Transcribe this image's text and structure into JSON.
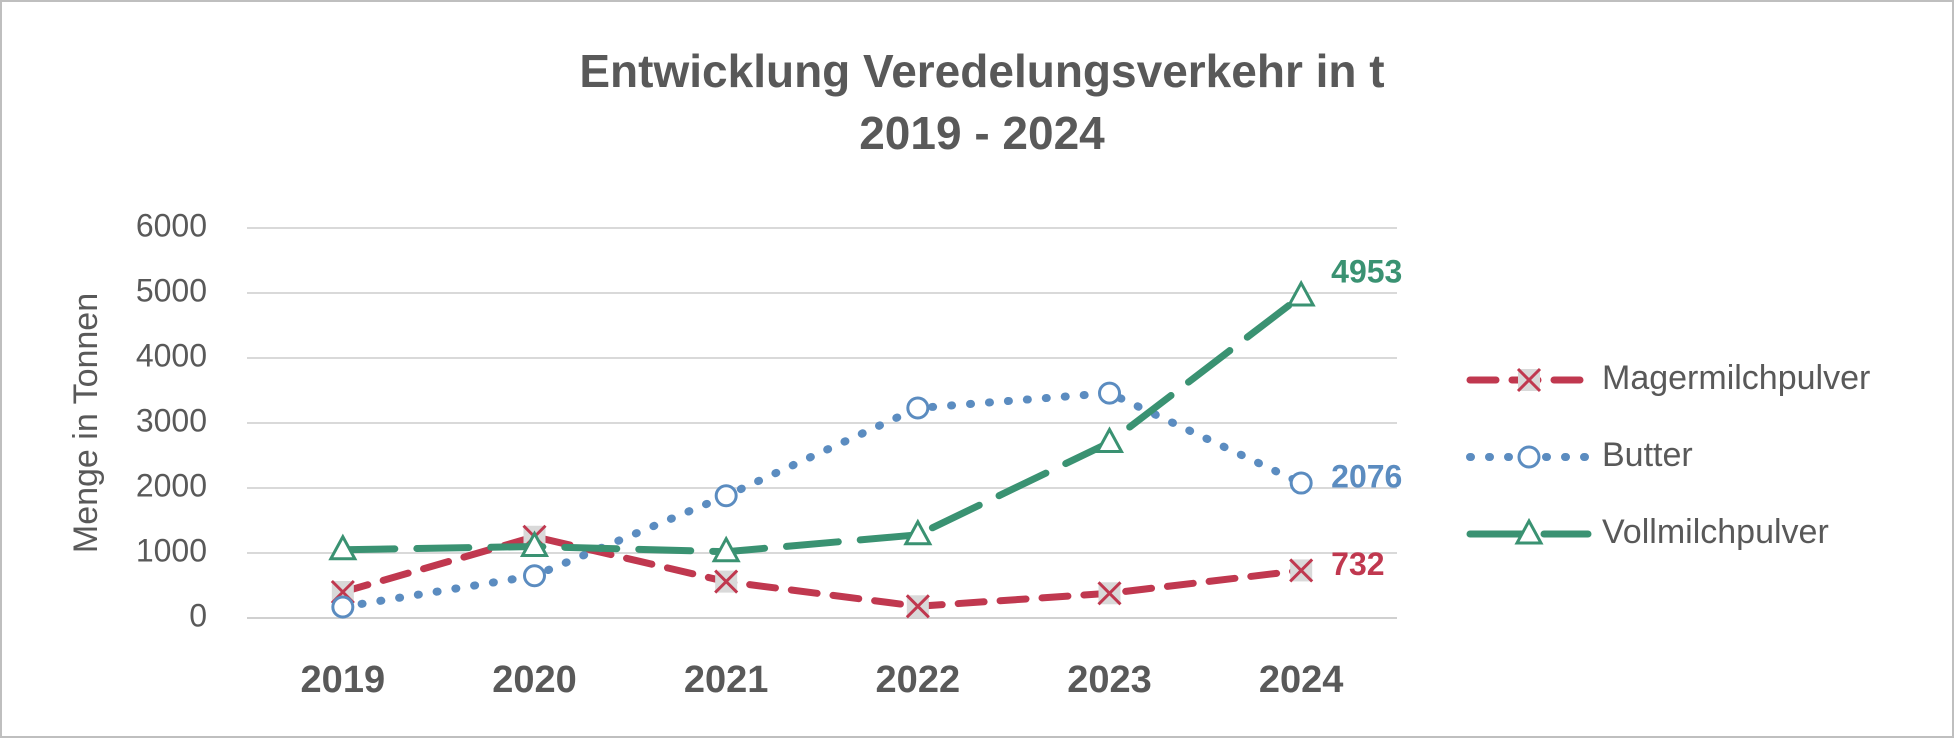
{
  "chart_data": {
    "type": "line",
    "title": [
      "Entwicklung Veredelungsverkehr in t",
      "2019 - 2024"
    ],
    "xlabel": "",
    "ylabel": "Menge in Tonnen",
    "ylim": [
      0,
      6000
    ],
    "yticks": [
      0,
      1000,
      2000,
      3000,
      4000,
      5000,
      6000
    ],
    "categories": [
      "2019",
      "2020",
      "2021",
      "2022",
      "2023",
      "2024"
    ],
    "grid": "horizontal",
    "legend": "right",
    "series": [
      {
        "name": "Magermilchpulver",
        "values": [
          400,
          1250,
          560,
          180,
          380,
          732
        ],
        "color": "#c0384f",
        "dash": "dashed",
        "marker": "x",
        "end_label": "732"
      },
      {
        "name": "Butter",
        "values": [
          170,
          650,
          1880,
          3230,
          3460,
          2076
        ],
        "color": "#5b8cc0",
        "dash": "dotted",
        "marker": "circle",
        "end_label": "2076"
      },
      {
        "name": "Vollmilchpulver",
        "values": [
          1050,
          1100,
          1020,
          1280,
          2700,
          4953
        ],
        "color": "#3a9272",
        "dash": "longdash",
        "marker": "triangle",
        "end_label": "4953"
      }
    ]
  }
}
